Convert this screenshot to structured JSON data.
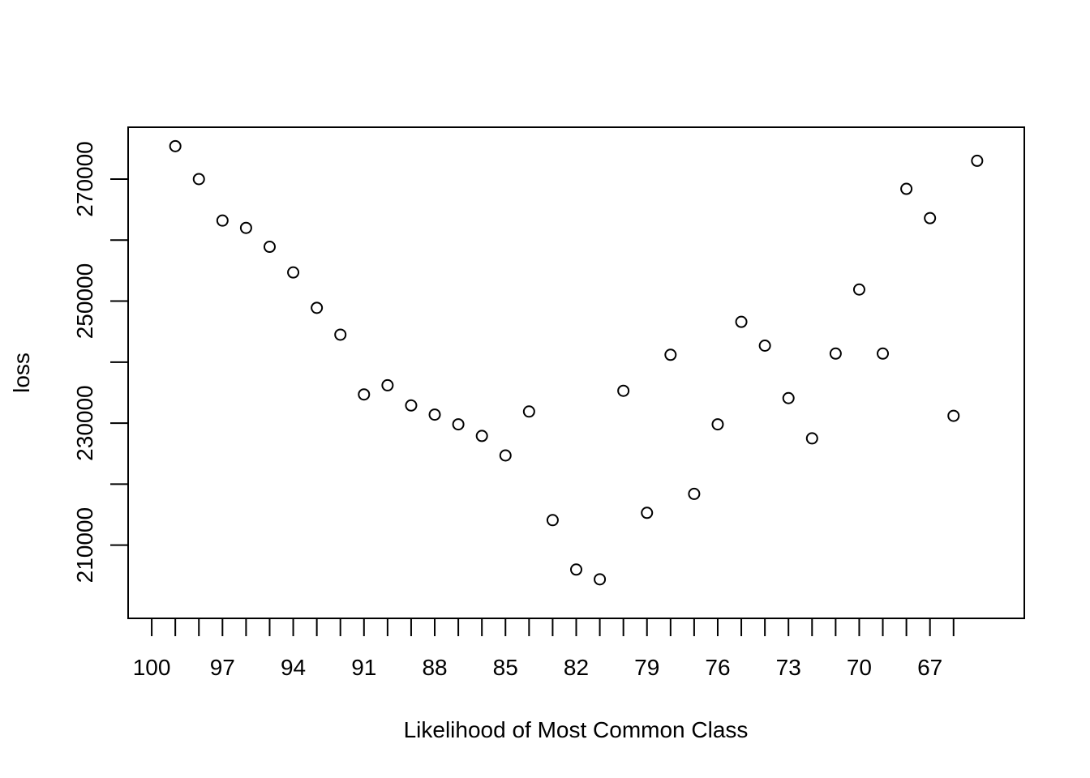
{
  "chart_data": {
    "type": "scatter",
    "title": "",
    "xlabel": "Likelihood of Most Common Class",
    "ylabel": "loss",
    "x_axis": {
      "reversed": true,
      "range": [
        101,
        63
      ],
      "minor_ticks": [
        100,
        99,
        98,
        97,
        96,
        95,
        94,
        93,
        92,
        91,
        90,
        89,
        88,
        87,
        86,
        85,
        84,
        83,
        82,
        81,
        80,
        79,
        78,
        77,
        76,
        75,
        74,
        73,
        72,
        71,
        70,
        69,
        68,
        67,
        66
      ],
      "tick_labels": [
        "100",
        "97",
        "94",
        "91",
        "88",
        "85",
        "82",
        "79",
        "76",
        "73",
        "70",
        "67"
      ],
      "tick_label_values": [
        100,
        97,
        94,
        91,
        88,
        85,
        82,
        79,
        76,
        73,
        70,
        67
      ]
    },
    "y_axis": {
      "range": [
        198000,
        278500
      ],
      "ticks": [
        210000,
        220000,
        230000,
        240000,
        250000,
        260000,
        270000
      ],
      "tick_labels": [
        "210000",
        "230000",
        "250000",
        "270000"
      ],
      "tick_label_values": [
        210000,
        230000,
        250000,
        270000
      ]
    },
    "grid": false,
    "legend": "none",
    "x": [
      99,
      98,
      97,
      96,
      95,
      94,
      93,
      92,
      91,
      90,
      89,
      88,
      87,
      86,
      85,
      84,
      83,
      82,
      81,
      80,
      79,
      78,
      77,
      76,
      75,
      74,
      73,
      72,
      71,
      70,
      69,
      68,
      67,
      66,
      65
    ],
    "y": [
      275400,
      270000,
      263200,
      262000,
      258900,
      254700,
      248900,
      244500,
      234700,
      236200,
      232900,
      231400,
      229800,
      227900,
      224700,
      231900,
      214100,
      206000,
      204400,
      235300,
      215300,
      241200,
      218400,
      229800,
      246600,
      242700,
      234100,
      227500,
      241400,
      251900,
      241400,
      268400,
      263600,
      231200,
      273000
    ]
  }
}
